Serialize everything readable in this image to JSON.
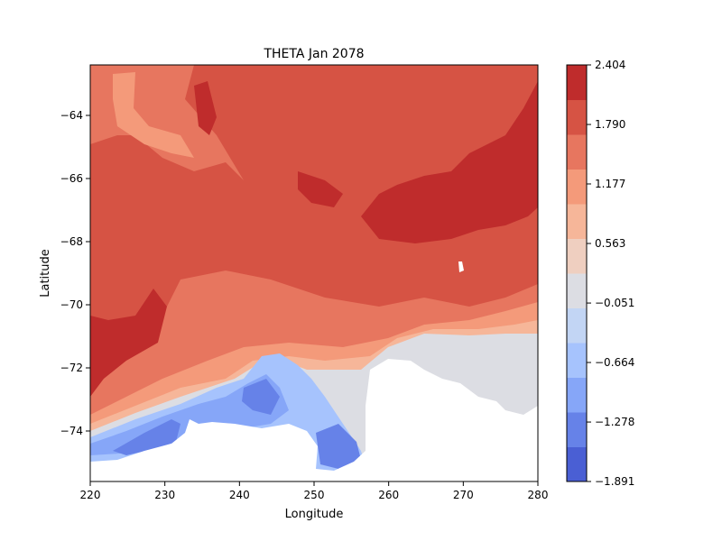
{
  "chart_data": {
    "type": "heatmap",
    "title": "THETA Jan 2078",
    "xlabel": "Longitude",
    "ylabel": "Latitude",
    "xlim": [
      220,
      280
    ],
    "ylim": [
      -75.6,
      -62.4
    ],
    "x_ticks": [
      220,
      230,
      240,
      250,
      260,
      270,
      280
    ],
    "y_ticks": [
      -74,
      -72,
      -70,
      -68,
      -66,
      -64
    ],
    "x_tick_labels": [
      "220",
      "230",
      "240",
      "250",
      "260",
      "270",
      "280"
    ],
    "y_tick_labels": [
      "−74",
      "−72",
      "−70",
      "−68",
      "−66",
      "−64"
    ],
    "colorbar": {
      "min": -1.891,
      "max": 2.404,
      "tick_labels": [
        "2.404",
        "1.790",
        "1.177",
        "0.563",
        "−0.051",
        "−0.664",
        "−1.278",
        "−1.891"
      ],
      "tick_values": [
        2.404,
        1.79,
        1.177,
        0.563,
        -0.051,
        -0.664,
        -1.278,
        -1.891
      ],
      "level_colors": [
        "#4a5fd4",
        "#6682e8",
        "#86a6f8",
        "#a6c3fd",
        "#c2d5f4",
        "#dcdde3",
        "#efcfc0",
        "#f6b699",
        "#f49a7a",
        "#e7765f",
        "#d65344",
        "#bf2c2c"
      ]
    },
    "land_mask_description_only": false
  }
}
